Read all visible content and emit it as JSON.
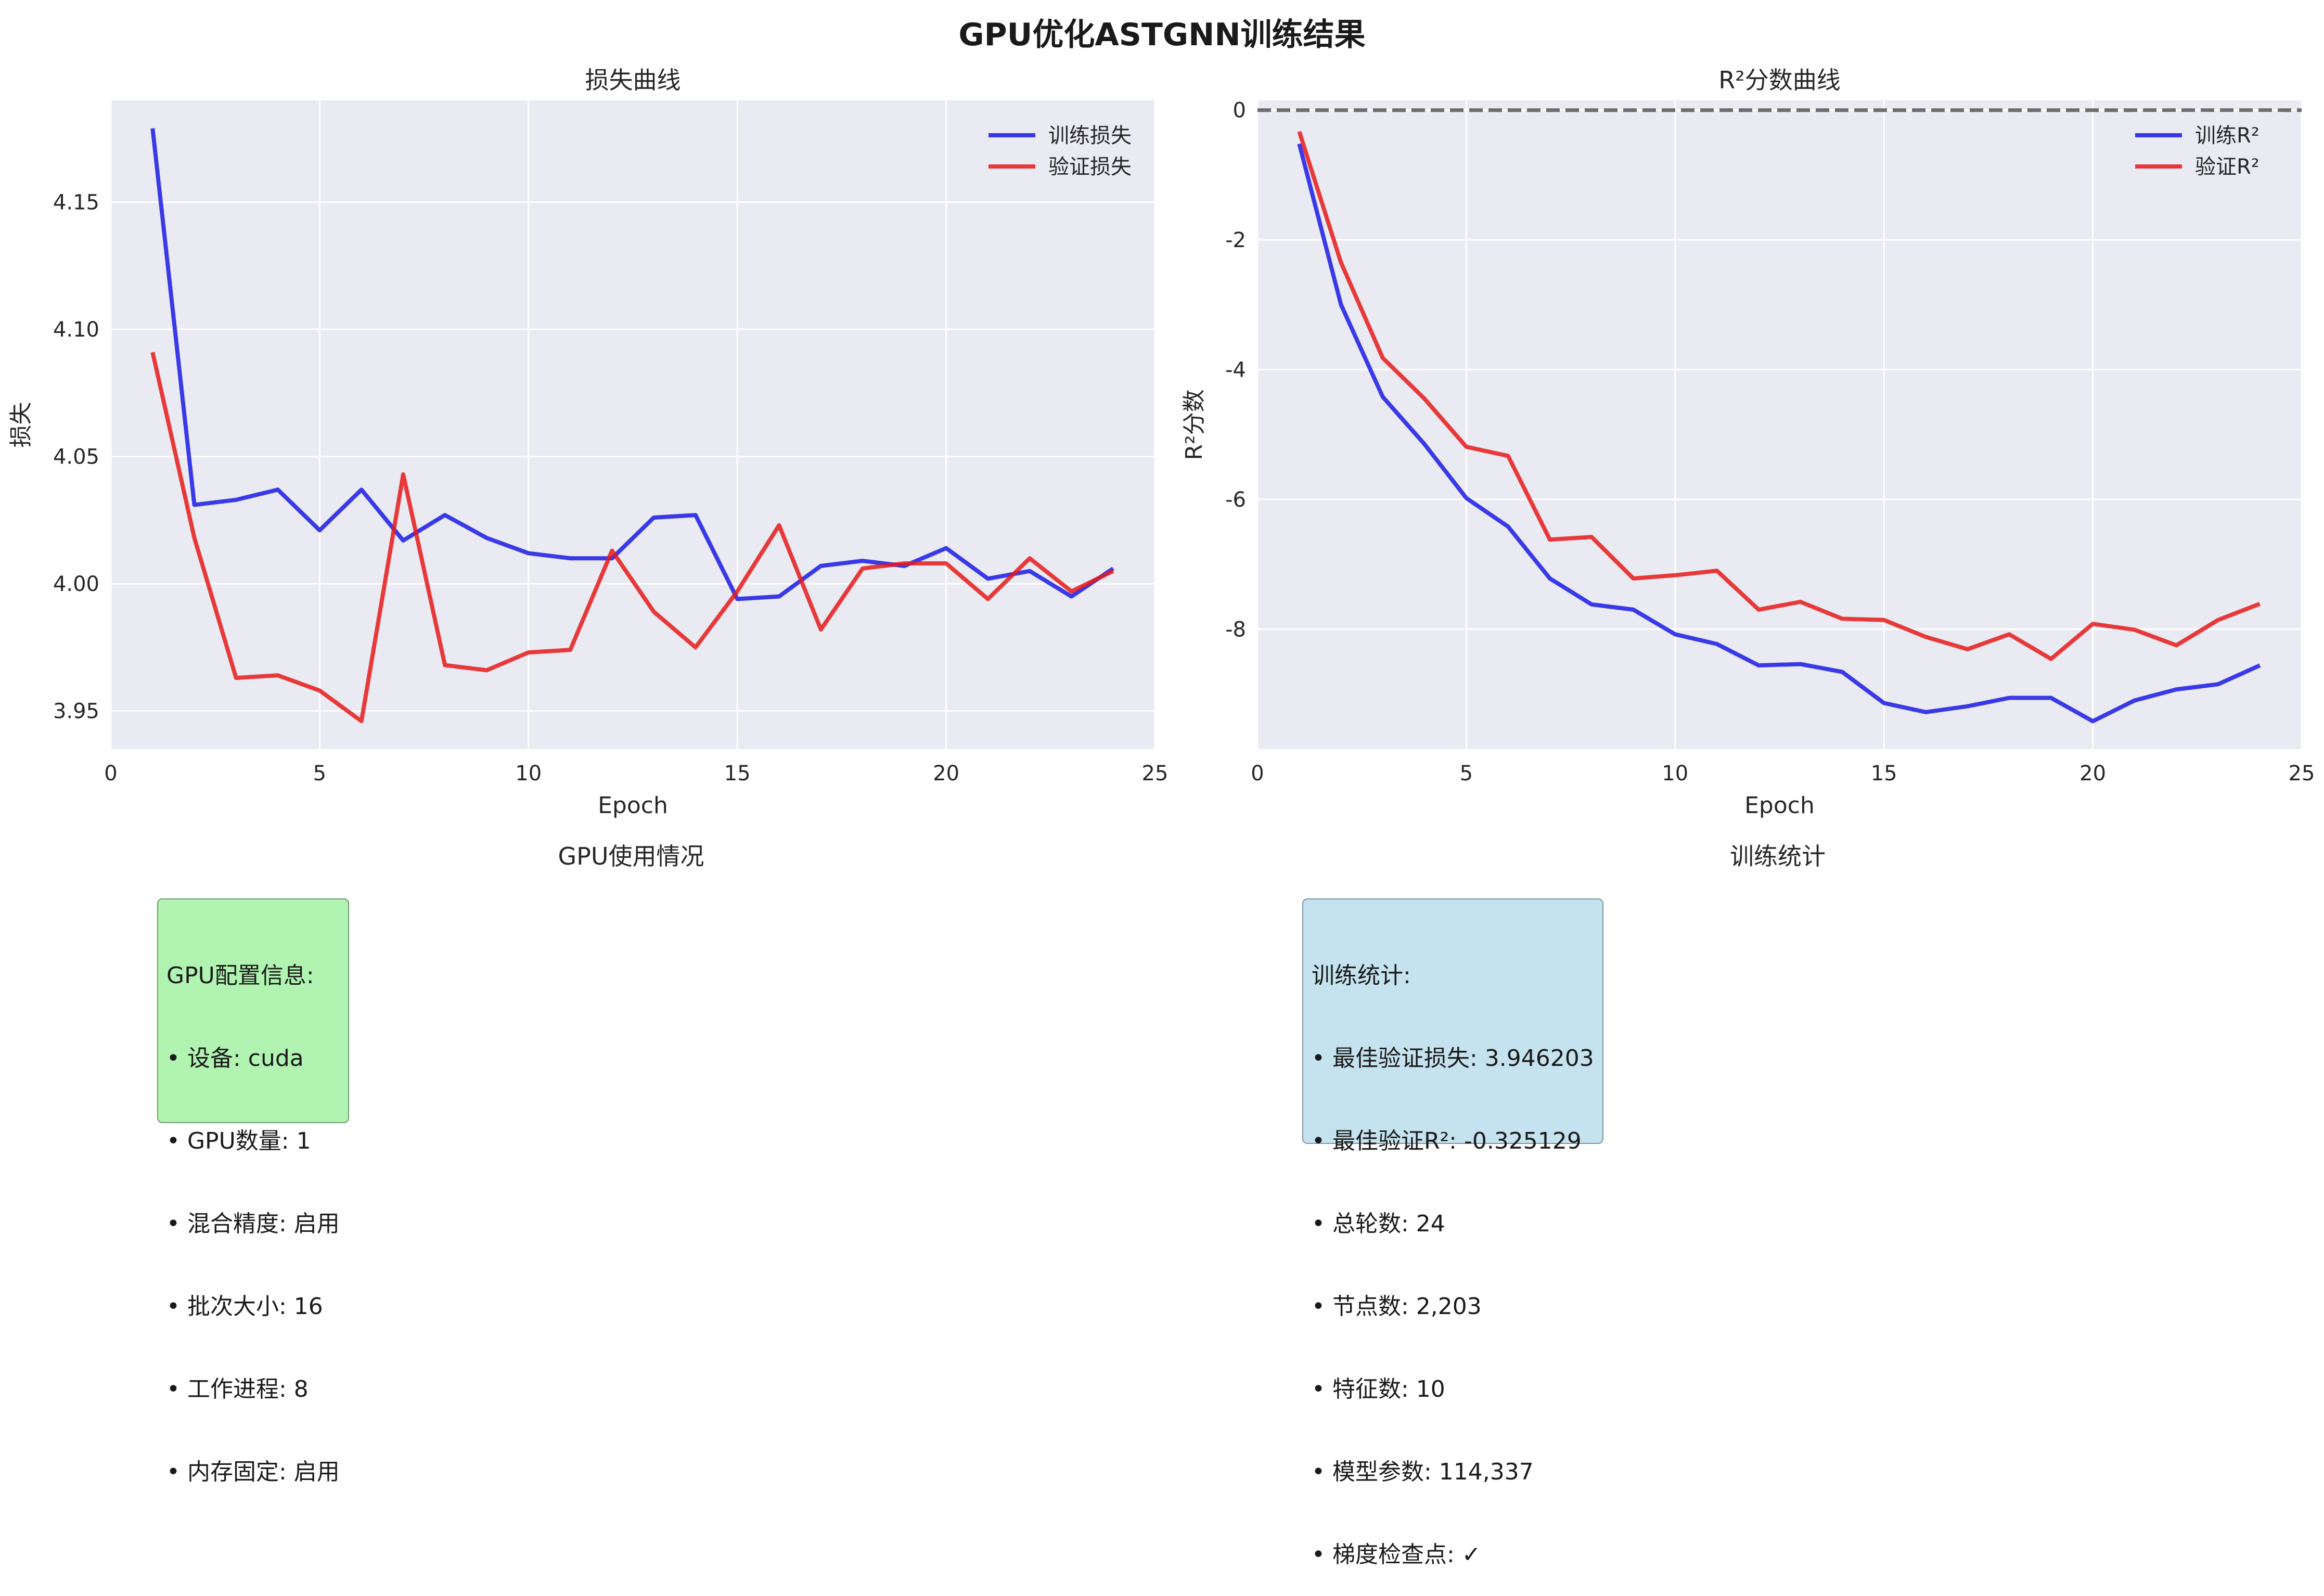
{
  "title": "GPU优化ASTGNN训练结果",
  "charts": [
    {
      "type": "line",
      "title": "损失曲线",
      "xlabel": "Epoch",
      "ylabel": "损失",
      "xlim": [
        0,
        25
      ],
      "ylim": [
        3.935,
        4.19
      ],
      "xticks": [
        0,
        5,
        10,
        15,
        20,
        25
      ],
      "yticks": [
        3.95,
        4.0,
        4.05,
        4.1,
        4.15
      ],
      "ytick_labels": [
        "3.95",
        "4.00",
        "4.05",
        "4.10",
        "4.15"
      ],
      "grid": true,
      "legend_position": "top-right",
      "x": [
        1,
        2,
        3,
        4,
        5,
        6,
        7,
        8,
        9,
        10,
        11,
        12,
        13,
        14,
        15,
        16,
        17,
        18,
        19,
        20,
        21,
        22,
        23,
        24
      ],
      "series": [
        {
          "name": "训练损失",
          "color": "#1a1ae6",
          "values": [
            4.179,
            4.031,
            4.033,
            4.037,
            4.021,
            4.037,
            4.017,
            4.027,
            4.018,
            4.012,
            4.01,
            4.01,
            4.026,
            4.027,
            3.994,
            3.995,
            4.007,
            4.009,
            4.007,
            4.014,
            4.002,
            4.005,
            3.995,
            4.006
          ]
        },
        {
          "name": "验证损失",
          "color": "#e61a1a",
          "values": [
            4.091,
            4.018,
            3.963,
            3.964,
            3.958,
            3.946,
            4.043,
            3.968,
            3.966,
            3.973,
            3.974,
            4.013,
            3.989,
            3.975,
            3.997,
            4.023,
            3.982,
            4.006,
            4.008,
            4.008,
            3.994,
            4.01,
            3.997,
            4.005
          ]
        }
      ]
    },
    {
      "type": "line",
      "title": "R²分数曲线",
      "xlabel": "Epoch",
      "ylabel": "R²分数",
      "xlim": [
        0,
        25
      ],
      "ylim": [
        -9.85,
        0.15
      ],
      "xticks": [
        0,
        5,
        10,
        15,
        20,
        25
      ],
      "yticks": [
        0,
        -2,
        -4,
        -6,
        -8
      ],
      "ytick_labels": [
        "0",
        "-2",
        "-4",
        "-6",
        "-8"
      ],
      "grid": true,
      "reference_line": 0,
      "legend_position": "top-right",
      "x": [
        1,
        2,
        3,
        4,
        5,
        6,
        7,
        8,
        9,
        10,
        11,
        12,
        13,
        14,
        15,
        16,
        17,
        18,
        19,
        20,
        21,
        22,
        23,
        24
      ],
      "series": [
        {
          "name": "训练R²",
          "color": "#1a1ae6",
          "values": [
            -0.52,
            -3.0,
            -4.42,
            -5.15,
            -5.98,
            -6.42,
            -7.22,
            -7.62,
            -7.7,
            -8.08,
            -8.23,
            -8.56,
            -8.54,
            -8.66,
            -9.14,
            -9.28,
            -9.19,
            -9.06,
            -9.06,
            -9.42,
            -9.1,
            -8.93,
            -8.85,
            -8.56
          ]
        },
        {
          "name": "验证R²",
          "color": "#e61a1a",
          "values": [
            -0.33,
            -2.35,
            -3.82,
            -4.45,
            -5.19,
            -5.33,
            -6.62,
            -6.58,
            -7.22,
            -7.17,
            -7.1,
            -7.7,
            -7.58,
            -7.84,
            -7.86,
            -8.12,
            -8.31,
            -8.08,
            -8.46,
            -7.92,
            -8.01,
            -8.25,
            -7.86,
            -7.61
          ]
        }
      ]
    }
  ],
  "gpu_panel": {
    "title": "GPU使用情况",
    "lines": [
      "GPU配置信息:",
      "• 设备: cuda",
      "• GPU数量: 1",
      "• 混合精度: 启用",
      "• 批次大小: 16",
      "• 工作进程: 8",
      "• 内存固定: 启用"
    ]
  },
  "stats_panel": {
    "title": "训练统计",
    "lines": [
      "训练统计:",
      "• 最佳验证损失: 3.946203",
      "• 最佳验证R²: -0.325129",
      "• 总轮数: 24",
      "• 节点数: 2,203",
      "• 特征数: 10",
      "• 模型参数: 114,337",
      "• 梯度检查点: ✓"
    ]
  }
}
